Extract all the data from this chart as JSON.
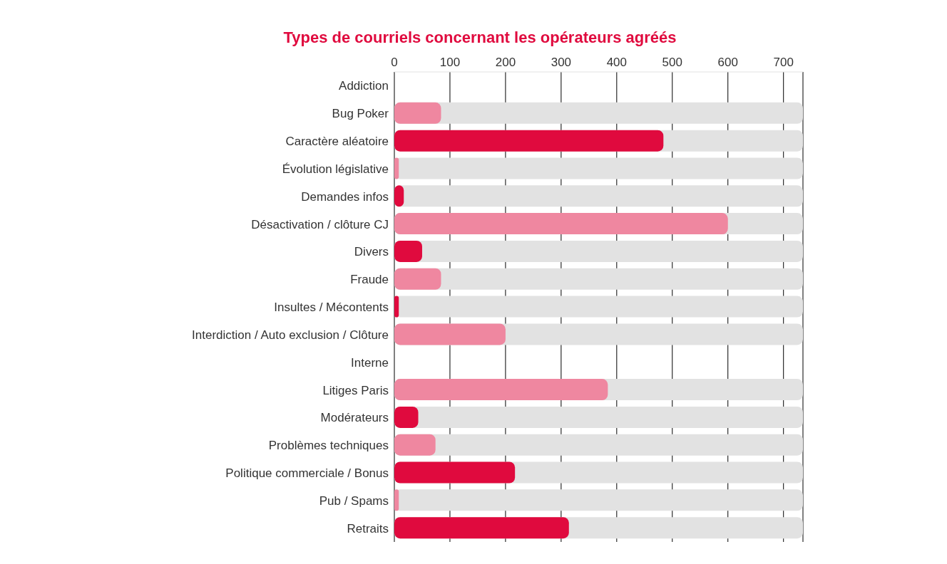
{
  "chart_data": {
    "type": "bar",
    "orientation": "horizontal",
    "title": "Types de courriels concernant les opérateurs agréés",
    "categories": [
      "Addiction",
      "Bug Poker",
      "Caractère aléatoire",
      "Évolution législative",
      "Demandes infos",
      "Désactivation / clôture CJ",
      "Divers",
      "Fraude",
      "Insultes / Mécontents",
      "Interdiction / Auto exclusion / Clôture",
      "Interne",
      "Litiges Paris",
      "Modérateurs",
      "Problèmes techniques",
      "Politique commerciale / Bonus",
      "Pub / Spams",
      "Retraits"
    ],
    "values": [
      0,
      84,
      484,
      8,
      17,
      600,
      50,
      84,
      8,
      200,
      0,
      384,
      43,
      74,
      217,
      8,
      314
    ],
    "colors": [
      "#ef87a0",
      "#ef87a0",
      "#e00a3e",
      "#ef87a0",
      "#e00a3e",
      "#ef87a0",
      "#e00a3e",
      "#ef87a0",
      "#e00a3e",
      "#ef87a0",
      "#ef87a0",
      "#ef87a0",
      "#e00a3e",
      "#ef87a0",
      "#e00a3e",
      "#ef87a0",
      "#e00a3e"
    ],
    "xlim": [
      0,
      735
    ],
    "xticks": [
      0,
      100,
      200,
      300,
      400,
      500,
      600,
      700
    ],
    "grid": "x"
  }
}
